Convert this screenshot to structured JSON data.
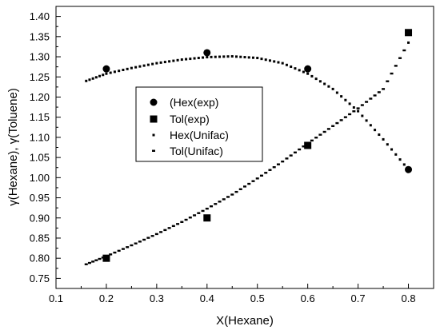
{
  "chart_data": {
    "type": "scatter",
    "xlabel": "X(Hexane)",
    "ylabel": "γ(Hexane), γ(Toluene)",
    "xlim": [
      0.1,
      0.85
    ],
    "ylim": [
      0.725,
      1.425
    ],
    "xticks": [
      0.1,
      0.2,
      0.3,
      0.4,
      0.5,
      0.6,
      0.7,
      0.8
    ],
    "yticks": [
      0.75,
      0.8,
      0.85,
      0.9,
      0.95,
      1.0,
      1.05,
      1.1,
      1.15,
      1.2,
      1.25,
      1.3,
      1.35,
      1.4
    ],
    "grid": false,
    "legend_position": "center-left",
    "series": [
      {
        "name": "(Hex(exp)",
        "marker": "circle",
        "x": [
          0.2,
          0.4,
          0.6,
          0.8
        ],
        "y": [
          1.27,
          1.31,
          1.27,
          1.02
        ]
      },
      {
        "name": "Tol(exp)",
        "marker": "square",
        "x": [
          0.2,
          0.4,
          0.6,
          0.8
        ],
        "y": [
          0.8,
          0.9,
          1.08,
          1.36
        ]
      },
      {
        "name": "Hex(Unifac)",
        "marker": "dot",
        "x": [
          0.16,
          0.2,
          0.25,
          0.3,
          0.35,
          0.4,
          0.45,
          0.5,
          0.55,
          0.6,
          0.65,
          0.7,
          0.75,
          0.8
        ],
        "y": [
          1.24,
          1.258,
          1.272,
          1.284,
          1.293,
          1.299,
          1.301,
          1.297,
          1.284,
          1.258,
          1.22,
          1.165,
          1.095,
          1.02
        ]
      },
      {
        "name": "Tol(Unifac)",
        "marker": "dash",
        "x": [
          0.16,
          0.2,
          0.25,
          0.3,
          0.35,
          0.4,
          0.45,
          0.5,
          0.55,
          0.6,
          0.65,
          0.7,
          0.75,
          0.8
        ],
        "y": [
          0.785,
          0.805,
          0.832,
          0.86,
          0.89,
          0.923,
          0.958,
          0.998,
          1.04,
          1.085,
          1.128,
          1.172,
          1.22,
          1.335
        ]
      }
    ]
  }
}
